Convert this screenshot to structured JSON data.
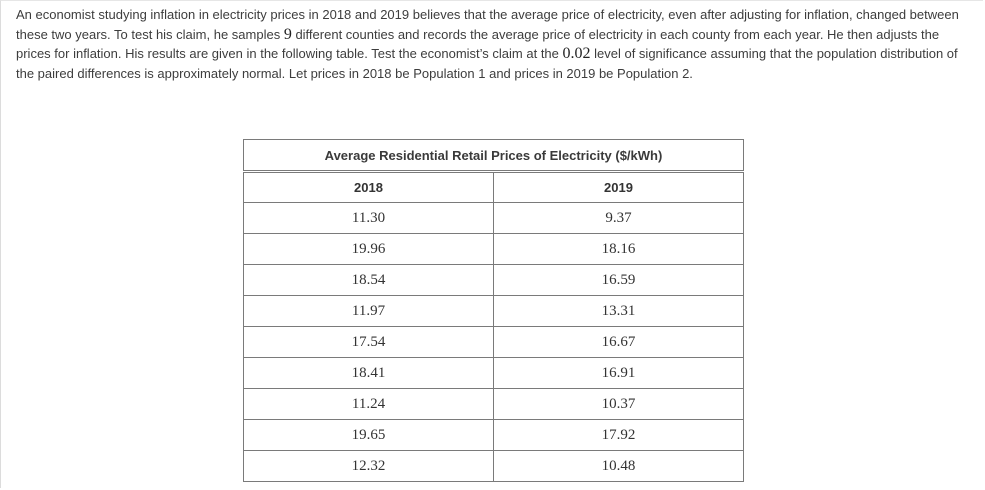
{
  "problem": {
    "part1": "An economist studying inflation in electricity prices in 2018 and 2019 believes that the average price of electricity, even after adjusting for inflation, changed between these two years. To test his claim, he samples ",
    "sample_size": "9",
    "part2": " different counties and records the average price of electricity in each county from each year. He then adjusts the prices for inflation. His results are given in the following table. Test the economist’s claim at the ",
    "alpha": "0.02",
    "part3": " level of significance assuming that the population distribution of the paired differences is approximately normal. Let prices in 2018 be Population 1 and prices in 2019 be Population 2."
  },
  "table": {
    "caption": "Average Residential Retail Prices of Electricity ($/kWh)",
    "headers": [
      "2018",
      "2019"
    ],
    "rows": [
      [
        "11.30",
        "9.37"
      ],
      [
        "19.96",
        "18.16"
      ],
      [
        "18.54",
        "16.59"
      ],
      [
        "11.97",
        "13.31"
      ],
      [
        "17.54",
        "16.67"
      ],
      [
        "18.41",
        "16.91"
      ],
      [
        "11.24",
        "10.37"
      ],
      [
        "19.65",
        "17.92"
      ],
      [
        "12.32",
        "10.48"
      ]
    ]
  }
}
